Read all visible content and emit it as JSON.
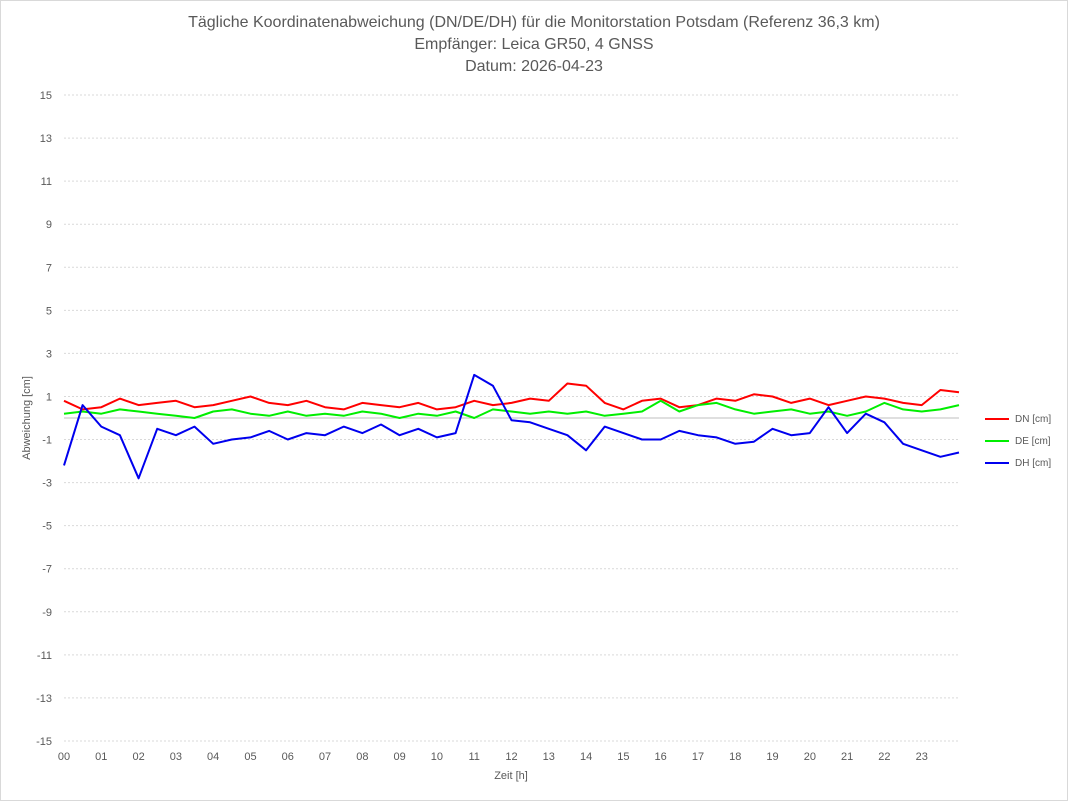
{
  "chart_data": {
    "type": "line",
    "title": "Tägliche Koordinatenabweichung (DN/DE/DH) für die Monitorstation Potsdam (Referenz 36,3 km)",
    "subtitle": "Empfänger: Leica GR50, 4 GNSS",
    "date_line": "Datum: 2026-04-23",
    "xlabel": "Zeit [h]",
    "ylabel": "Abweichung [cm]",
    "ylim": [
      -15,
      15
    ],
    "yticks": [
      15,
      13,
      11,
      9,
      7,
      5,
      3,
      1,
      -1,
      -3,
      -5,
      -7,
      -9,
      -11,
      -13,
      -15
    ],
    "xlim": [
      0,
      24
    ],
    "xticks": [
      "00",
      "01",
      "02",
      "03",
      "04",
      "05",
      "06",
      "07",
      "08",
      "09",
      "10",
      "11",
      "12",
      "13",
      "14",
      "15",
      "16",
      "17",
      "18",
      "19",
      "20",
      "21",
      "22",
      "23"
    ],
    "grid": true,
    "legend_position": "right",
    "sample_interval_h": 0.5,
    "series": [
      {
        "name": "DN [cm]",
        "color": "#ff0000",
        "values": [
          0.8,
          0.4,
          0.5,
          0.9,
          0.6,
          0.7,
          0.8,
          0.5,
          0.6,
          0.8,
          1.0,
          0.7,
          0.6,
          0.8,
          0.5,
          0.4,
          0.7,
          0.6,
          0.5,
          0.7,
          0.4,
          0.5,
          0.8,
          0.6,
          0.7,
          0.9,
          0.8,
          1.6,
          1.5,
          0.7,
          0.4,
          0.8,
          0.9,
          0.5,
          0.6,
          0.9,
          0.8,
          1.1,
          1.0,
          0.7,
          0.9,
          0.6,
          0.8,
          1.0,
          0.9,
          0.7,
          0.6,
          1.3,
          1.2
        ]
      },
      {
        "name": "DE [cm]",
        "color": "#00ee00",
        "values": [
          0.2,
          0.3,
          0.2,
          0.4,
          0.3,
          0.2,
          0.1,
          0.0,
          0.3,
          0.4,
          0.2,
          0.1,
          0.3,
          0.1,
          0.2,
          0.1,
          0.3,
          0.2,
          0.0,
          0.2,
          0.1,
          0.3,
          0.0,
          0.4,
          0.3,
          0.2,
          0.3,
          0.2,
          0.3,
          0.1,
          0.2,
          0.3,
          0.8,
          0.3,
          0.6,
          0.7,
          0.4,
          0.2,
          0.3,
          0.4,
          0.2,
          0.3,
          0.1,
          0.3,
          0.7,
          0.4,
          0.3,
          0.4,
          0.6
        ]
      },
      {
        "name": "DH [cm]",
        "color": "#0000ee",
        "values": [
          -2.2,
          0.6,
          -0.4,
          -0.8,
          -2.8,
          -0.5,
          -0.8,
          -0.4,
          -1.2,
          -1.0,
          -0.9,
          -0.6,
          -1.0,
          -0.7,
          -0.8,
          -0.4,
          -0.7,
          -0.3,
          -0.8,
          -0.5,
          -0.9,
          -0.7,
          2.0,
          1.5,
          -0.1,
          -0.2,
          -0.5,
          -0.8,
          -1.5,
          -0.4,
          -0.7,
          -1.0,
          -1.0,
          -0.6,
          -0.8,
          -0.9,
          -1.2,
          -1.1,
          -0.5,
          -0.8,
          -0.7,
          0.5,
          -0.7,
          0.2,
          -0.2,
          -1.2,
          -1.5,
          -1.8,
          -1.6
        ]
      }
    ]
  }
}
